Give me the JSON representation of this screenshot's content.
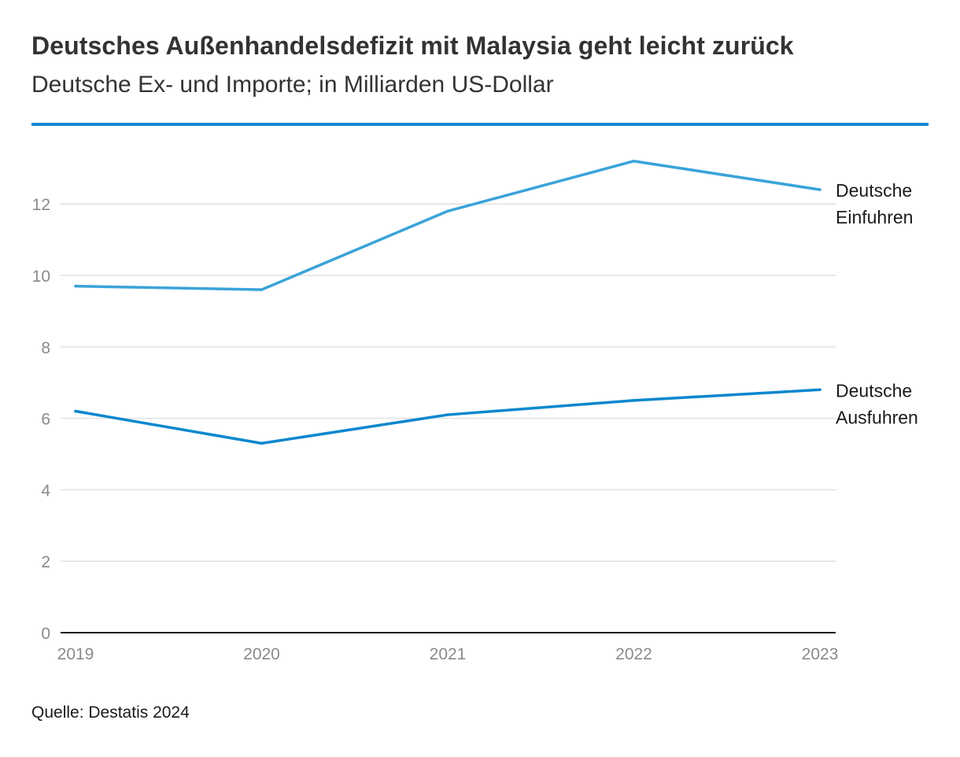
{
  "header": {
    "title": "Deutsches Außenhandelsdefizit mit Malaysia geht leicht zurück",
    "subtitle": "Deutsche Ex- und Importe; in Milliarden US-Dollar"
  },
  "footer": {
    "source": "Quelle: Destatis 2024"
  },
  "colors": {
    "accent_rule": "#0a8bd6",
    "imports_line": "#3aa3d9",
    "exports_line": "#0a87cf",
    "grid": "#e2e2e2",
    "axis": "#1a1a1a"
  },
  "chart_data": {
    "type": "line",
    "title": "Deutsches Außenhandelsdefizit mit Malaysia geht leicht zurück",
    "subtitle": "Deutsche Ex- und Importe; in Milliarden US-Dollar",
    "xlabel": "",
    "ylabel": "",
    "x": [
      "2019",
      "2020",
      "2021",
      "2022",
      "2023"
    ],
    "ylim": [
      0,
      13.6
    ],
    "yticks": [
      0,
      2,
      4,
      6,
      8,
      10,
      12
    ],
    "grid": true,
    "legend": "direct-labels-right",
    "series": [
      {
        "key": "imports",
        "name_lines": [
          "Deutsche",
          "Einfuhren"
        ],
        "values": [
          9.7,
          9.6,
          11.8,
          13.2,
          12.4
        ]
      },
      {
        "key": "exports",
        "name_lines": [
          "Deutsche",
          "Ausfuhren"
        ],
        "values": [
          6.2,
          5.3,
          6.1,
          6.5,
          6.8
        ]
      }
    ]
  }
}
